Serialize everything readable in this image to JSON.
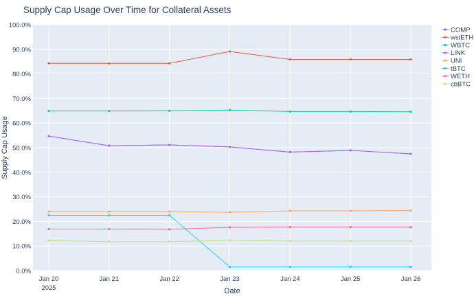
{
  "chart_data": {
    "type": "line",
    "title": "Supply Cap Usage Over Time for Collateral Assets",
    "xlabel": "Date",
    "ylabel": "Supply Cap Usage",
    "x": [
      "2025-01-20",
      "2025-01-21",
      "2025-01-22",
      "2025-01-23",
      "2025-01-24",
      "2025-01-25",
      "2025-01-26"
    ],
    "x_tick_labels": [
      "Jan 20",
      "Jan 21",
      "Jan 22",
      "Jan 23",
      "Jan 24",
      "Jan 25",
      "Jan 26"
    ],
    "x_tick_year": "2025",
    "ylim": [
      0,
      100
    ],
    "y_ticks": [
      0,
      10,
      20,
      30,
      40,
      50,
      60,
      70,
      80,
      90,
      100
    ],
    "y_tick_labels": [
      "0.0%",
      "10.0%",
      "20.0%",
      "30.0%",
      "40.0%",
      "50.0%",
      "60.0%",
      "70.0%",
      "80.0%",
      "90.0%",
      "100.0%"
    ],
    "grid": true,
    "legend_position": "top-right",
    "plot_bg": "#e5ecf6",
    "series": [
      {
        "name": "COMP",
        "color": "#636efa",
        "values": [
          54.7,
          50.8,
          51.1,
          50.3,
          48.2,
          48.9,
          47.5
        ]
      },
      {
        "name": "wstETH",
        "color": "#ef553b",
        "values": [
          84.3,
          84.3,
          84.3,
          89.1,
          85.9,
          85.9,
          85.9
        ]
      },
      {
        "name": "WBTC",
        "color": "#00cc96",
        "values": [
          64.9,
          64.9,
          65.0,
          65.3,
          64.7,
          64.7,
          64.6
        ]
      },
      {
        "name": "LINK",
        "color": "#ab63fa",
        "values": [
          54.7,
          50.8,
          51.1,
          50.3,
          48.2,
          48.9,
          47.5
        ]
      },
      {
        "name": "UNI",
        "color": "#ffa15a",
        "values": [
          24.0,
          24.0,
          24.0,
          23.7,
          24.3,
          24.3,
          24.4
        ]
      },
      {
        "name": "tBTC",
        "color": "#19d3f3",
        "values": [
          22.5,
          22.5,
          22.5,
          1.5,
          1.5,
          1.5,
          1.5
        ]
      },
      {
        "name": "WETH",
        "color": "#ff6692",
        "values": [
          16.9,
          16.9,
          16.8,
          17.6,
          17.7,
          17.7,
          17.7
        ]
      },
      {
        "name": "cbBTC",
        "color": "#b6e880",
        "values": [
          12.2,
          11.8,
          11.8,
          12.3,
          12.0,
          12.0,
          12.0
        ]
      }
    ]
  }
}
